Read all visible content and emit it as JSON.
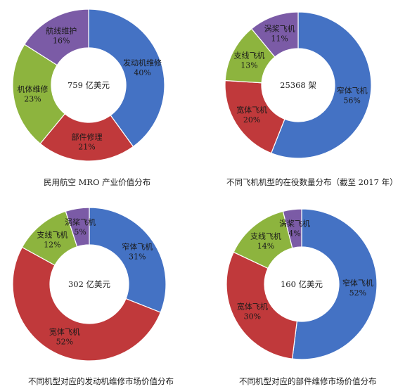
{
  "chart_data": [
    {
      "type": "pie",
      "donut": true,
      "title": "民用航空 MRO 产业价值分布",
      "center_label": "759 亿美元",
      "slices": [
        {
          "label": "发动机维修",
          "value": 40,
          "value_label": "40%",
          "color": "#4472c4"
        },
        {
          "label": "部件修理",
          "value": 21,
          "value_label": "21%",
          "color": "#c0393b"
        },
        {
          "label": "机体维修",
          "value": 23,
          "value_label": "23%",
          "color": "#8db43e"
        },
        {
          "label": "航线维护",
          "value": 16,
          "value_label": "16%",
          "color": "#7b5ba6"
        }
      ]
    },
    {
      "type": "pie",
      "donut": true,
      "title": "不同飞机机型的在役数量分布（截至 2017 年）",
      "center_label": "25368 架",
      "slices": [
        {
          "label": "窄体飞机",
          "value": 56,
          "value_label": "56%",
          "color": "#4472c4"
        },
        {
          "label": "宽体飞机",
          "value": 20,
          "value_label": "20%",
          "color": "#c0393b"
        },
        {
          "label": "支线飞机",
          "value": 13,
          "value_label": "13%",
          "color": "#8db43e"
        },
        {
          "label": "涡桨飞机",
          "value": 11,
          "value_label": "11%",
          "color": "#7b5ba6"
        }
      ]
    },
    {
      "type": "pie",
      "donut": true,
      "title": "不同机型对应的发动机维修市场价值分布",
      "center_label": "302 亿美元",
      "slices": [
        {
          "label": "窄体飞机",
          "value": 31,
          "value_label": "31%",
          "color": "#4472c4"
        },
        {
          "label": "宽体飞机",
          "value": 52,
          "value_label": "52%",
          "color": "#c0393b"
        },
        {
          "label": "支线飞机",
          "value": 12,
          "value_label": "12%",
          "color": "#8db43e"
        },
        {
          "label": "涡桨飞机",
          "value": 5,
          "value_label": "5%",
          "color": "#7b5ba6"
        }
      ]
    },
    {
      "type": "pie",
      "donut": true,
      "title": "不同机型对应的部件维修市场价值分布",
      "center_label": "160 亿美元",
      "slices": [
        {
          "label": "窄体飞机",
          "value": 52,
          "value_label": "52%",
          "color": "#4472c4"
        },
        {
          "label": "宽体飞机",
          "value": 30,
          "value_label": "30%",
          "color": "#c0393b"
        },
        {
          "label": "支线飞机",
          "value": 14,
          "value_label": "14%",
          "color": "#8db43e"
        },
        {
          "label": "涡桨飞机",
          "value": 4,
          "value_label": "4%",
          "color": "#7b5ba6"
        }
      ]
    }
  ]
}
